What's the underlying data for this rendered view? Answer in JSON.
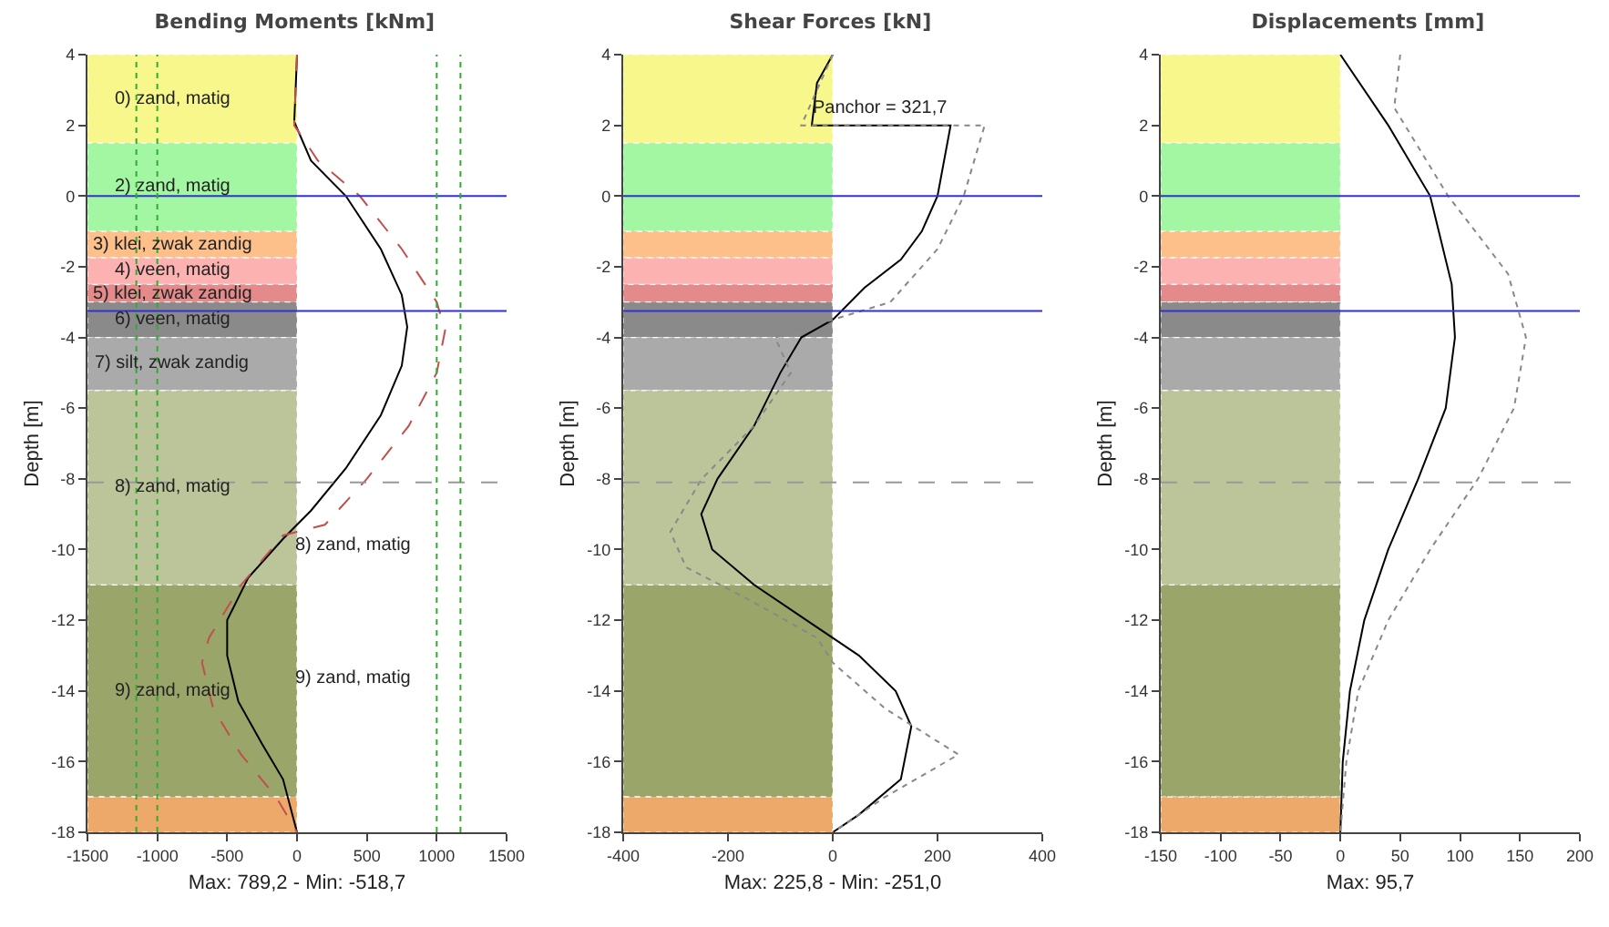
{
  "chart_data": [
    {
      "type": "line",
      "title": "Bending Moments [kNm]",
      "xlabel": "Max: 789,2 - Min: -518,7",
      "ylabel": "Depth [m]",
      "xlim": [
        -1500,
        1500
      ],
      "xticks": [
        -1500,
        -1000,
        -500,
        0,
        500,
        1000,
        1500
      ],
      "ylim": [
        -18,
        4
      ],
      "yticks": [
        -18,
        -16,
        -14,
        -12,
        -10,
        -8,
        -6,
        -4,
        -2,
        0,
        2,
        4
      ],
      "grid": false,
      "marker": "none",
      "series": [
        {
          "color": "#000000",
          "line_style": "solid",
          "x": [
            0,
            -10,
            -20,
            100,
            350,
            600,
            750,
            789,
            750,
            600,
            350,
            100,
            -100,
            -350,
            -500,
            -500,
            -420,
            -250,
            -100,
            0
          ],
          "values": [
            4,
            3,
            2.1,
            1,
            0,
            -1.5,
            -2.8,
            -3.7,
            -4.8,
            -6.2,
            -7.7,
            -8.9,
            -9.7,
            -10.8,
            -12,
            -13,
            -14.3,
            -15.5,
            -16.5,
            -18
          ]
        },
        {
          "color": "#c0504d",
          "line_style": "dashed",
          "x": [
            0,
            -20,
            150,
            450,
            750,
            1000,
            1060,
            1000,
            800,
            500,
            200,
            0,
            -100,
            -400,
            -630,
            -680,
            -600,
            -400,
            -150,
            0
          ],
          "values": [
            4,
            2,
            1,
            0,
            -1.5,
            -3,
            -3.8,
            -5,
            -6.5,
            -8,
            -9.3,
            -9.5,
            -9.6,
            -11,
            -12.5,
            -13.2,
            -14.5,
            -15.8,
            -17,
            -18
          ]
        }
      ],
      "bands": [
        {
          "axis": "y",
          "from": 1.5,
          "to": 4,
          "color": "#f7f78c",
          "label": "0) zand, matig"
        },
        {
          "axis": "y",
          "from": -1,
          "to": 1.5,
          "color": "#a3f7a3",
          "label": "2) zand, matig"
        },
        {
          "axis": "y",
          "from": -1.75,
          "to": -1,
          "color": "#fdc08a",
          "label": "3) klei, zwak zandig"
        },
        {
          "axis": "y",
          "from": -2.5,
          "to": -1.75,
          "color": "#fdb2b2",
          "label": "4) veen, matig"
        },
        {
          "axis": "y",
          "from": -3,
          "to": -2.5,
          "color": "#e58a8a",
          "label": "5) klei, zwak zandig"
        },
        {
          "axis": "y",
          "from": -4,
          "to": -3,
          "color": "#8a8a8a",
          "label": "6) veen, matig"
        },
        {
          "axis": "y",
          "from": -5.5,
          "to": -4,
          "color": "#aaaaaa",
          "label": "7) silt, zwak zandig"
        },
        {
          "axis": "y",
          "from": -11,
          "to": -5.5,
          "color": "#bcc59a",
          "label": "8) zand, matig"
        },
        {
          "axis": "y",
          "from": -17,
          "to": -11,
          "color": "#9aa56a",
          "label": "9) zand, matig"
        },
        {
          "axis": "y",
          "from": -18,
          "to": -17,
          "color": "#eca96a",
          "label": null
        }
      ],
      "ref_lines": [
        {
          "axis": "y",
          "value": 0,
          "color": "#3333cc",
          "line_style": "solid",
          "label": null
        },
        {
          "axis": "y",
          "value": -3.25,
          "color": "#3333cc",
          "line_style": "solid",
          "label": null
        },
        {
          "axis": "y",
          "value": -8.1,
          "color": "#999999",
          "line_style": "dashed",
          "label": null
        },
        {
          "axis": "x",
          "value": -1150,
          "color": "#33aa33",
          "line_style": "dotted",
          "label": null
        },
        {
          "axis": "x",
          "value": -1000,
          "color": "#33aa33",
          "line_style": "dotted",
          "label": null
        },
        {
          "axis": "x",
          "value": 1000,
          "color": "#33aa33",
          "line_style": "dotted",
          "label": null
        },
        {
          "axis": "x",
          "value": 1170,
          "color": "#33aa33",
          "line_style": "dotted",
          "label": null
        }
      ],
      "annotations": [
        "8) zand, matig",
        "9) zand, matig"
      ]
    },
    {
      "type": "line",
      "title": "Shear Forces [kN]",
      "xlabel": "Max: 225,8 - Min: -251,0",
      "ylabel": "Depth [m]",
      "xlim": [
        -400,
        400
      ],
      "xticks": [
        -400,
        -200,
        0,
        200,
        400
      ],
      "ylim": [
        -18,
        4
      ],
      "yticks": [
        -18,
        -16,
        -14,
        -12,
        -10,
        -8,
        -6,
        -4,
        -2,
        0,
        2,
        4
      ],
      "grid": false,
      "marker": "none",
      "series": [
        {
          "color": "#000000",
          "line_style": "solid",
          "x": [
            0,
            -30,
            -40,
            225,
            200,
            170,
            130,
            60,
            0,
            -60,
            -100,
            -150,
            -220,
            -251,
            -230,
            -150,
            -50,
            50,
            120,
            150,
            130,
            50,
            0
          ],
          "values": [
            4,
            3.2,
            2,
            2,
            0,
            -1,
            -1.8,
            -2.6,
            -3.5,
            -4,
            -5,
            -6.5,
            -8,
            -9,
            -10,
            -11,
            -12,
            -13,
            -14,
            -15,
            -16.5,
            -17.5,
            -18
          ]
        },
        {
          "color": "#888888",
          "line_style": "dotted",
          "x": [
            0,
            -30,
            -60,
            290,
            250,
            200,
            110,
            0,
            -110,
            -80,
            -150,
            -250,
            -310,
            -280,
            -150,
            -30,
            0,
            100,
            240,
            100,
            0
          ],
          "values": [
            4,
            3,
            2,
            2,
            0,
            -1.5,
            -3,
            -3.5,
            -4,
            -5,
            -6.5,
            -8,
            -9.5,
            -10.5,
            -11.5,
            -12.5,
            -13.2,
            -14.5,
            -15.8,
            -17,
            -18
          ]
        }
      ],
      "bands": [
        {
          "axis": "y",
          "from": 1.5,
          "to": 4,
          "color": "#f7f78c",
          "label": null
        },
        {
          "axis": "y",
          "from": -1,
          "to": 1.5,
          "color": "#a3f7a3",
          "label": null
        },
        {
          "axis": "y",
          "from": -1.75,
          "to": -1,
          "color": "#fdc08a",
          "label": null
        },
        {
          "axis": "y",
          "from": -2.5,
          "to": -1.75,
          "color": "#fdb2b2",
          "label": null
        },
        {
          "axis": "y",
          "from": -3,
          "to": -2.5,
          "color": "#e58a8a",
          "label": null
        },
        {
          "axis": "y",
          "from": -4,
          "to": -3,
          "color": "#8a8a8a",
          "label": null
        },
        {
          "axis": "y",
          "from": -5.5,
          "to": -4,
          "color": "#aaaaaa",
          "label": null
        },
        {
          "axis": "y",
          "from": -11,
          "to": -5.5,
          "color": "#bcc59a",
          "label": null
        },
        {
          "axis": "y",
          "from": -17,
          "to": -11,
          "color": "#9aa56a",
          "label": null
        },
        {
          "axis": "y",
          "from": -18,
          "to": -17,
          "color": "#eca96a",
          "label": null
        }
      ],
      "ref_lines": [
        {
          "axis": "y",
          "value": 0,
          "color": "#3333cc",
          "line_style": "solid",
          "label": null
        },
        {
          "axis": "y",
          "value": -3.25,
          "color": "#3333cc",
          "line_style": "solid",
          "label": null
        },
        {
          "axis": "y",
          "value": -8.1,
          "color": "#999999",
          "line_style": "dashed",
          "label": null
        }
      ],
      "annotations": [
        {
          "text": "Panchor = 321,7",
          "x": 225,
          "y": 2
        }
      ]
    },
    {
      "type": "line",
      "title": "Displacements [mm]",
      "xlabel": "Max: 95,7",
      "ylabel": "Depth [m]",
      "xlim": [
        -150,
        200
      ],
      "xticks": [
        -150,
        -100,
        -50,
        0,
        50,
        100,
        150,
        200
      ],
      "ylim": [
        -18,
        4
      ],
      "yticks": [
        -18,
        -16,
        -14,
        -12,
        -10,
        -8,
        -6,
        -4,
        -2,
        0,
        2,
        4
      ],
      "grid": false,
      "marker": "none",
      "series": [
        {
          "color": "#000000",
          "line_style": "solid",
          "x": [
            0,
            40,
            75,
            93,
            95.7,
            88,
            65,
            40,
            20,
            8,
            2,
            0
          ],
          "values": [
            4,
            2,
            0,
            -2.5,
            -4,
            -6,
            -8,
            -10,
            -12,
            -14,
            -16,
            -18
          ]
        },
        {
          "color": "#888888",
          "line_style": "dotted",
          "x": [
            50,
            45,
            90,
            140,
            155,
            145,
            115,
            75,
            40,
            15,
            5,
            0
          ],
          "values": [
            4,
            2.5,
            0,
            -2.2,
            -4,
            -6,
            -8,
            -10,
            -12,
            -14,
            -16,
            -18
          ]
        }
      ],
      "bands": [
        {
          "axis": "y",
          "from": 1.5,
          "to": 4,
          "color": "#f7f78c",
          "label": null
        },
        {
          "axis": "y",
          "from": -1,
          "to": 1.5,
          "color": "#a3f7a3",
          "label": null
        },
        {
          "axis": "y",
          "from": -1.75,
          "to": -1,
          "color": "#fdc08a",
          "label": null
        },
        {
          "axis": "y",
          "from": -2.5,
          "to": -1.75,
          "color": "#fdb2b2",
          "label": null
        },
        {
          "axis": "y",
          "from": -3,
          "to": -2.5,
          "color": "#e58a8a",
          "label": null
        },
        {
          "axis": "y",
          "from": -4,
          "to": -3,
          "color": "#8a8a8a",
          "label": null
        },
        {
          "axis": "y",
          "from": -5.5,
          "to": -4,
          "color": "#aaaaaa",
          "label": null
        },
        {
          "axis": "y",
          "from": -11,
          "to": -5.5,
          "color": "#bcc59a",
          "label": null
        },
        {
          "axis": "y",
          "from": -17,
          "to": -11,
          "color": "#9aa56a",
          "label": null
        },
        {
          "axis": "y",
          "from": -18,
          "to": -17,
          "color": "#eca96a",
          "label": null
        }
      ],
      "ref_lines": [
        {
          "axis": "y",
          "value": 0,
          "color": "#3333cc",
          "line_style": "solid",
          "label": null
        },
        {
          "axis": "y",
          "value": -3.25,
          "color": "#3333cc",
          "line_style": "solid",
          "label": null
        },
        {
          "axis": "y",
          "value": -8.1,
          "color": "#999999",
          "line_style": "dashed",
          "label": null
        }
      ]
    }
  ]
}
